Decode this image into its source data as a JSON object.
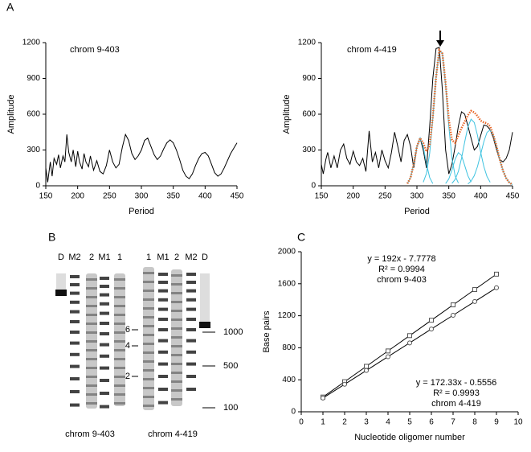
{
  "panel_labels": [
    "A",
    "B",
    "C"
  ],
  "chart_data": [
    {
      "type": "line",
      "title": "chrom 9-403",
      "xlabel": "Period",
      "ylabel": "Amplitude",
      "xlim": [
        150,
        450
      ],
      "xticks": [
        150,
        200,
        250,
        300,
        350,
        400,
        450
      ],
      "ylim": [
        0,
        1200
      ],
      "yticks": [
        0,
        300,
        600,
        900,
        1200
      ],
      "series": [
        {
          "color": "#000000",
          "x": [
            150,
            153,
            157,
            160,
            163,
            167,
            170,
            173,
            177,
            180,
            183,
            186,
            190,
            193,
            197,
            200,
            203,
            207,
            210,
            213,
            217,
            220,
            225,
            230,
            235,
            240,
            245,
            250,
            255,
            260,
            265,
            270,
            275,
            280,
            285,
            290,
            295,
            300,
            305,
            310,
            315,
            320,
            325,
            330,
            335,
            340,
            345,
            350,
            355,
            360,
            365,
            370,
            375,
            380,
            385,
            390,
            395,
            400,
            405,
            410,
            415,
            420,
            425,
            430,
            440,
            450
          ],
          "values": [
            150,
            30,
            200,
            80,
            230,
            180,
            260,
            150,
            250,
            200,
            430,
            280,
            200,
            300,
            160,
            290,
            200,
            140,
            270,
            200,
            160,
            250,
            130,
            210,
            120,
            100,
            170,
            300,
            200,
            150,
            180,
            320,
            430,
            380,
            270,
            220,
            250,
            300,
            380,
            400,
            330,
            260,
            220,
            250,
            310,
            360,
            385,
            360,
            300,
            220,
            130,
            80,
            60,
            100,
            170,
            230,
            270,
            280,
            250,
            180,
            110,
            80,
            100,
            150,
            270,
            360
          ]
        }
      ]
    },
    {
      "type": "line",
      "title": "chrom 4-419",
      "xlabel": "Period",
      "ylabel": "Amplitude",
      "xlim": [
        150,
        450
      ],
      "xticks": [
        150,
        200,
        250,
        300,
        350,
        400,
        450
      ],
      "ylim": [
        0,
        1200
      ],
      "yticks": [
        0,
        300,
        600,
        900,
        1200
      ],
      "series": [
        {
          "color": "#000000",
          "x": [
            150,
            153,
            157,
            160,
            165,
            170,
            175,
            180,
            185,
            190,
            195,
            200,
            205,
            210,
            215,
            220,
            225,
            230,
            235,
            240,
            245,
            250,
            255,
            260,
            265,
            270,
            275,
            280,
            285,
            290,
            295,
            300,
            305,
            310,
            315,
            320,
            325,
            330,
            335,
            340,
            345,
            350,
            355,
            360,
            365,
            370,
            375,
            380,
            385,
            390,
            395,
            400,
            405,
            410,
            415,
            420,
            425,
            430,
            435,
            440,
            445,
            450
          ],
          "values": [
            180,
            100,
            220,
            280,
            150,
            250,
            150,
            300,
            350,
            230,
            180,
            290,
            200,
            170,
            230,
            120,
            460,
            200,
            280,
            150,
            300,
            210,
            150,
            280,
            450,
            330,
            200,
            380,
            430,
            330,
            150,
            330,
            400,
            300,
            150,
            500,
            900,
            1150,
            1160,
            800,
            300,
            100,
            180,
            330,
            500,
            620,
            600,
            500,
            400,
            300,
            330,
            420,
            510,
            500,
            470,
            400,
            300,
            220,
            200,
            230,
            300,
            450
          ]
        },
        {
          "color": "#3fc3e0",
          "x": [
            285,
            290,
            295,
            300,
            305,
            310,
            315,
            320,
            325
          ],
          "values": [
            18,
            69,
            183,
            329,
            400,
            329,
            183,
            69,
            18
          ]
        },
        {
          "color": "#3fc3e0",
          "x": [
            310,
            315,
            320,
            325,
            330,
            335,
            340,
            345,
            350,
            355,
            360,
            365
          ],
          "values": [
            30,
            104,
            273,
            565,
            908,
            1137,
            1109,
            842,
            498,
            230,
            82,
            23
          ]
        },
        {
          "color": "#3fc3e0",
          "x": [
            345,
            350,
            355,
            360,
            365,
            370,
            375,
            380,
            385
          ],
          "values": [
            19,
            57,
            133,
            224,
            278,
            254,
            170,
            83,
            31
          ]
        },
        {
          "color": "#3fc3e0",
          "x": [
            355,
            360,
            365,
            370,
            375,
            380,
            385,
            390,
            395,
            400,
            405,
            410,
            415
          ],
          "values": [
            20,
            53,
            121,
            230,
            368,
            494,
            558,
            530,
            423,
            283,
            161,
            76,
            30
          ]
        },
        {
          "color": "#3fc3e0",
          "x": [
            380,
            385,
            390,
            395,
            400,
            405,
            410,
            415,
            420,
            425,
            430,
            435,
            440,
            445,
            450
          ],
          "values": [
            15,
            39,
            85,
            162,
            263,
            370,
            448,
            468,
            423,
            329,
            221,
            127,
            64,
            27,
            10
          ]
        },
        {
          "color": "#e8682a",
          "dotted": true,
          "x": [
            285,
            290,
            295,
            300,
            305,
            310,
            315,
            320,
            325,
            330,
            335,
            340,
            345,
            350,
            355,
            360,
            365,
            370,
            375,
            380,
            385,
            390,
            395,
            400,
            405,
            410,
            415,
            420,
            425,
            430,
            435,
            440,
            445,
            450
          ],
          "values": [
            18,
            69,
            183,
            329,
            400,
            359,
            287,
            342,
            583,
            908,
            1137,
            1109,
            861,
            555,
            383,
            359,
            422,
            484,
            538,
            592,
            628,
            615,
            585,
            546,
            531,
            524,
            498,
            423,
            329,
            221,
            127,
            64,
            27,
            10
          ]
        }
      ]
    },
    {
      "type": "scatter",
      "xlabel": "Nucleotide oligomer number",
      "ylabel": "Base pairs",
      "xlim": [
        0,
        10
      ],
      "xticks": [
        0,
        1,
        2,
        3,
        4,
        5,
        6,
        7,
        8,
        9,
        10
      ],
      "ylim": [
        0,
        2000
      ],
      "yticks": [
        0,
        400,
        800,
        1200,
        1600,
        2000
      ],
      "series": [
        {
          "color": "#555555",
          "marker": "square",
          "x": [
            1,
            2,
            3,
            4,
            5,
            6,
            7,
            8,
            9
          ],
          "values": [
            184,
            376,
            568,
            760,
            952,
            1144,
            1336,
            1528,
            1720
          ]
        },
        {
          "color": "#555555",
          "marker": "circle",
          "x": [
            1,
            2,
            3,
            4,
            5,
            6,
            7,
            8,
            9
          ],
          "values": [
            172,
            344,
            516,
            689,
            861,
            1034,
            1206,
            1378,
            1550
          ]
        }
      ],
      "annotations": [
        [
          "y = 192x - 7.7778",
          "R² = 0.9994",
          "chrom 9-403"
        ],
        [
          "y = 172.33x - 0.5556",
          "R² = 0.9993",
          "chrom 4-419"
        ]
      ]
    }
  ],
  "gel": {
    "lane_labels": [
      "D",
      "M2",
      "2",
      "M1",
      "1",
      "1",
      "M1",
      "2",
      "M2",
      "D"
    ],
    "marker_labels": [
      "6",
      "4",
      "2"
    ],
    "size_labels": [
      "1000",
      "500",
      "100"
    ],
    "captions": [
      "chrom 9-403",
      "chrom 4-419"
    ]
  }
}
